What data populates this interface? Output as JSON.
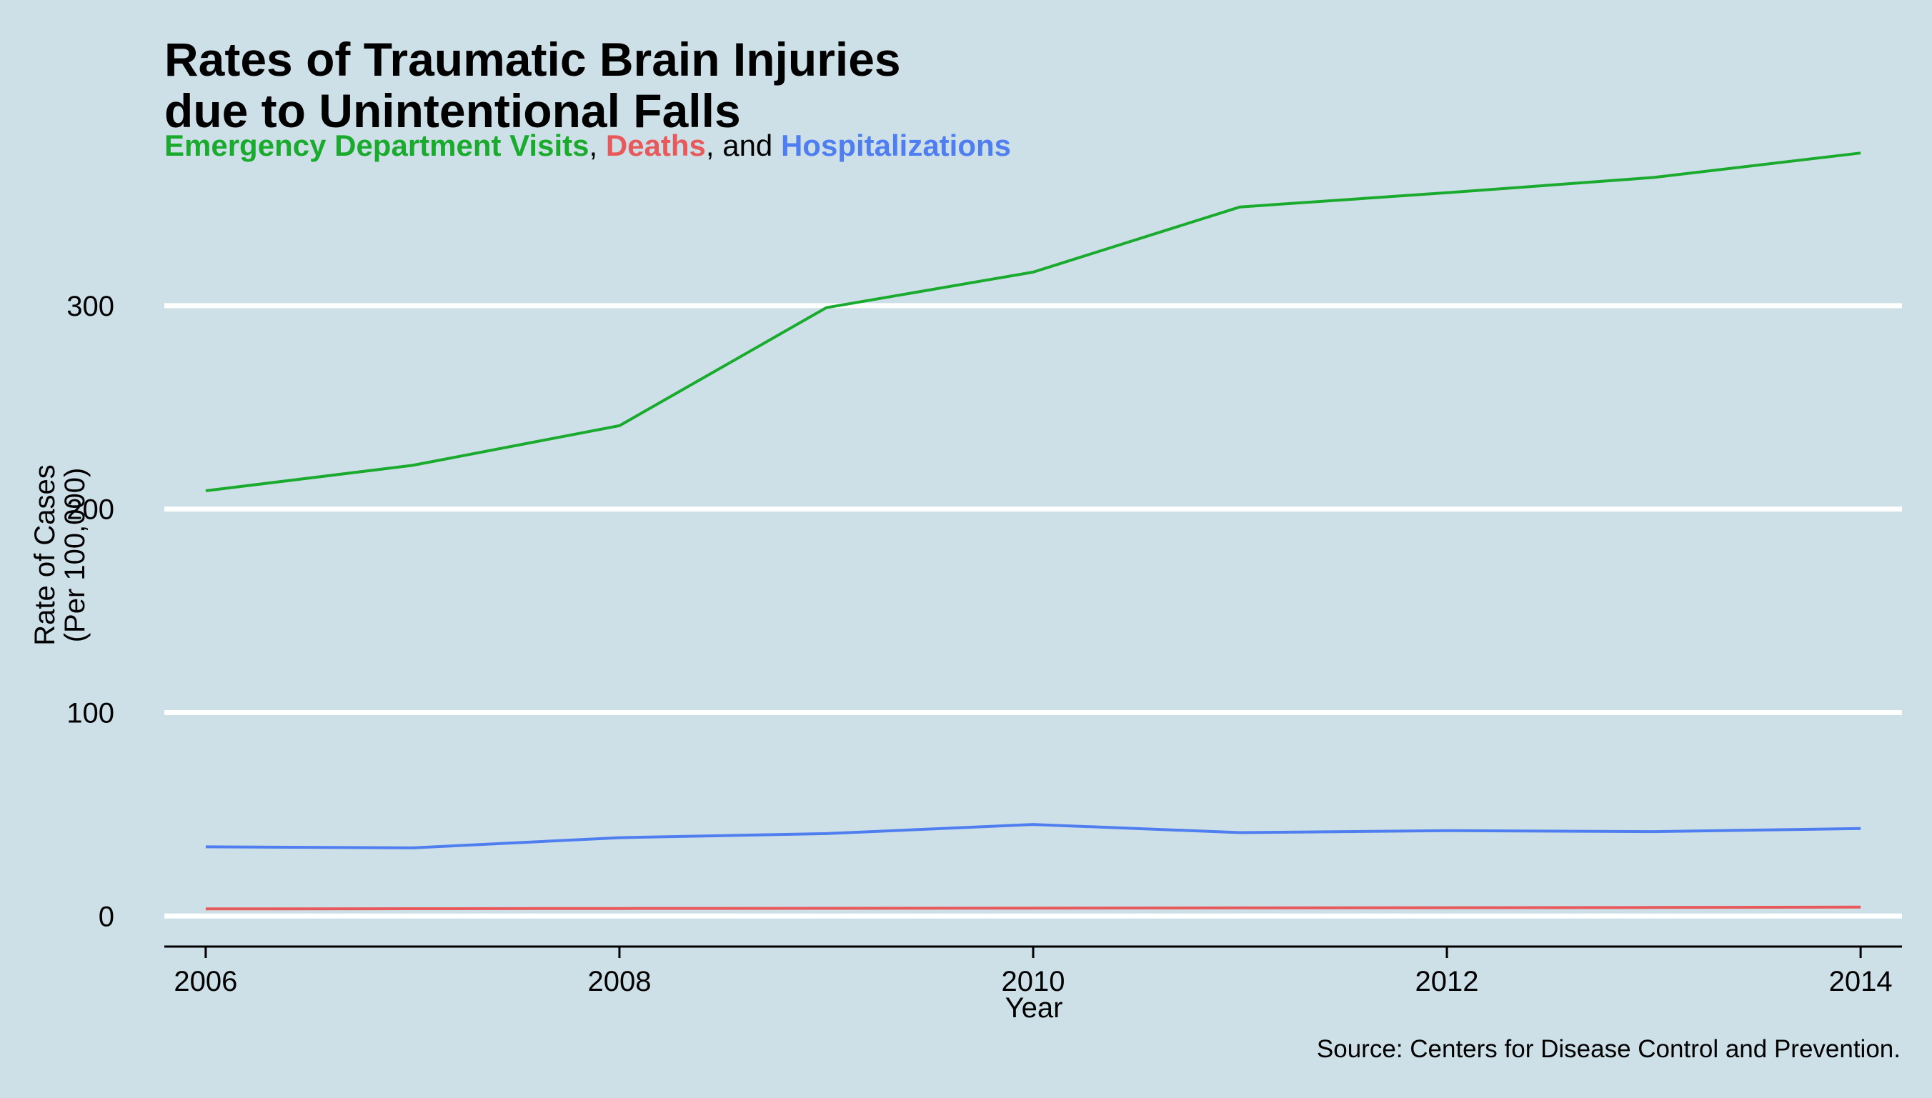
{
  "chart_data": {
    "type": "line",
    "title_lines": [
      "Rates of Traumatic Brain Injuries",
      "due to Unintentional Falls"
    ],
    "subtitle": {
      "ed": "Emergency Department Visits",
      "sep1": ", ",
      "deaths": "Deaths",
      "sep2": ", and ",
      "hosp": "Hospitalizations"
    },
    "xlabel": "Year",
    "ylabel_lines": [
      "Rate of Cases",
      "(Per 100,000)"
    ],
    "source": "Source: Centers for Disease Control and Prevention.",
    "x": [
      2006,
      2007,
      2008,
      2009,
      2010,
      2011,
      2012,
      2013,
      2014
    ],
    "x_ticks": [
      2006,
      2008,
      2010,
      2012,
      2014
    ],
    "y_ticks": [
      0,
      100,
      200,
      300
    ],
    "xlim": [
      2005.8,
      2014.2
    ],
    "ylim": [
      -15,
      380
    ],
    "grid": "horizontal",
    "series": [
      {
        "name": "Emergency Department Visits",
        "color": "#1aab2e",
        "values": [
          209,
          221.5,
          241,
          299,
          316.5,
          348.5,
          355.5,
          363,
          375
        ]
      },
      {
        "name": "Deaths",
        "color": "#e8595c",
        "values": [
          3.5,
          3.6,
          3.7,
          3.8,
          3.9,
          4.0,
          4.1,
          4.2,
          4.4
        ]
      },
      {
        "name": "Hospitalizations",
        "color": "#4f7ef0",
        "values": [
          34,
          33.5,
          38.5,
          40.5,
          45,
          41,
          42,
          41.5,
          43
        ]
      }
    ]
  }
}
